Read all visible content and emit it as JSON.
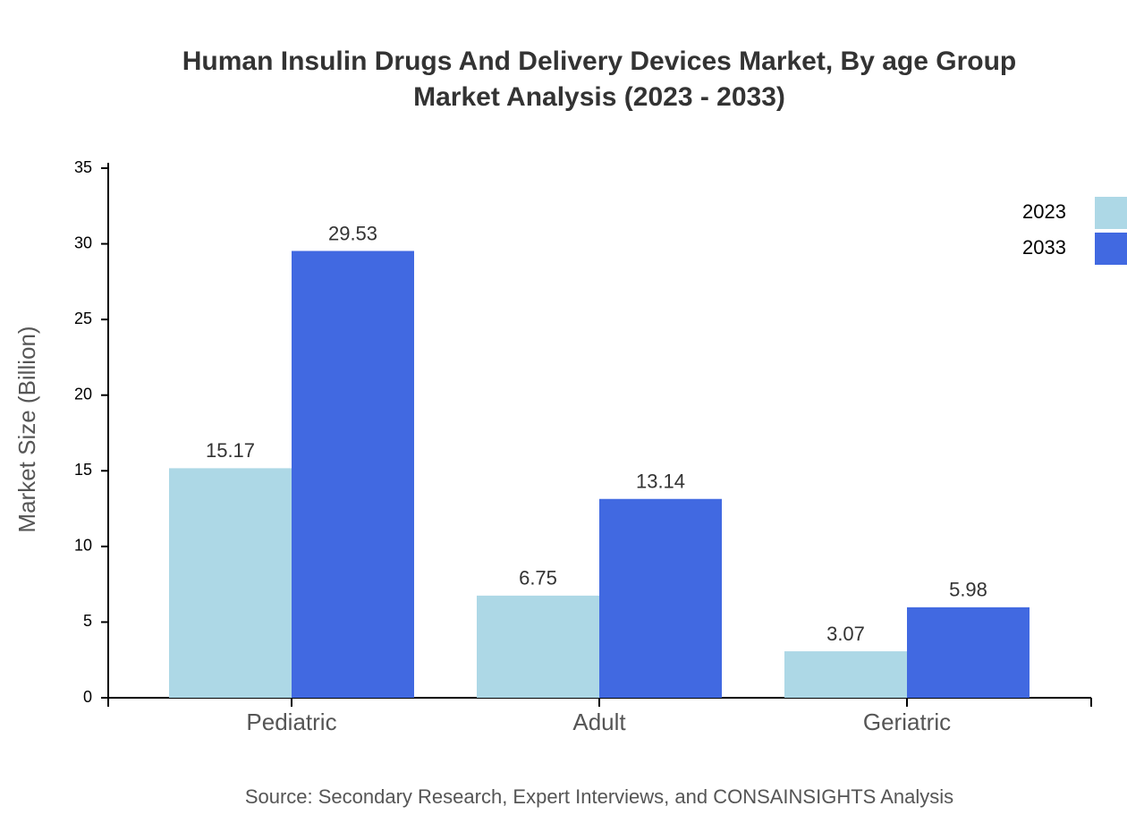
{
  "chart_data": {
    "type": "bar",
    "title": [
      "Human Insulin Drugs And Delivery Devices Market, By age Group",
      "Market Analysis (2023 - 2033)"
    ],
    "y_label": "Market Size (Billion)",
    "source": "Source: Secondary Research, Expert Interviews, and CONSAINSIGHTS Analysis",
    "categories": [
      "Pediatric",
      "Adult",
      "Geriatric"
    ],
    "series": [
      {
        "name": "2023",
        "color": "#add8e6",
        "values": [
          15.17,
          6.75,
          3.07
        ]
      },
      {
        "name": "2033",
        "color": "#4169e1",
        "values": [
          29.53,
          13.14,
          5.98
        ]
      }
    ],
    "ylim": [
      0,
      35
    ],
    "yticks": [
      0,
      5,
      10,
      15,
      20,
      25,
      30,
      35
    ],
    "legend": "top-right"
  }
}
